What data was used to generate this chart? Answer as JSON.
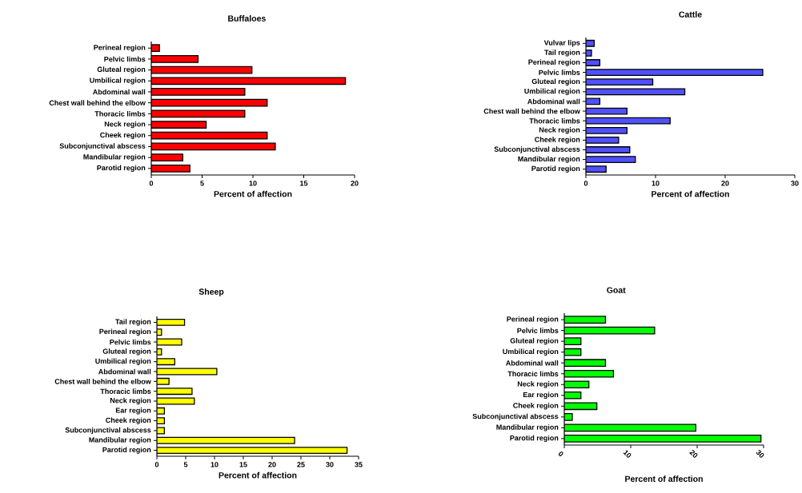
{
  "chart_data": [
    {
      "type": "bar",
      "orientation": "horizontal",
      "title": "Buffaloes",
      "xlabel": "Percent of affection",
      "color": "#ff0000",
      "xlim": [
        0,
        20
      ],
      "xticks": [
        0,
        5,
        10,
        15,
        20
      ],
      "categories": [
        "Perineal region",
        "Pelvic limbs",
        "Gluteal region",
        "Umbilical region",
        "Abdominal wall",
        "Chest wall behind the elbow",
        "Thoracic limbs",
        "Neck region",
        "Cheek region",
        "Subconjunctival abscess",
        "Mandibular region",
        "Parotid region"
      ],
      "values": [
        0.8,
        4.6,
        9.9,
        19.1,
        9.2,
        11.4,
        9.2,
        5.4,
        11.4,
        12.2,
        3.1,
        3.8
      ]
    },
    {
      "type": "bar",
      "orientation": "horizontal",
      "title": "Cattle",
      "xlabel": "Percent of affection",
      "color": "#5050ff",
      "xlim": [
        0,
        30
      ],
      "xticks": [
        0,
        10,
        20,
        30
      ],
      "categories": [
        "Vulvar lips",
        "Tail region",
        "Perineal region",
        "Pelvic limbs",
        "Gluteal region",
        "Umbilical region",
        "Abdominal wall",
        "Chest wall behind the elbow",
        "Thoracic limbs",
        "Neck region",
        "Cheek region",
        "Subconjunctival abscess",
        "Mandibular region",
        "Parotid region"
      ],
      "values": [
        1.2,
        0.8,
        2.0,
        25.4,
        9.6,
        14.2,
        2.0,
        5.9,
        12.1,
        5.9,
        4.7,
        6.3,
        7.1,
        2.9
      ]
    },
    {
      "type": "bar",
      "orientation": "horizontal",
      "title": "Sheep",
      "xlabel": "Percent of affection",
      "color": "#ffff00",
      "xlim": [
        0,
        35
      ],
      "xticks": [
        0,
        5,
        10,
        15,
        20,
        25,
        30,
        35
      ],
      "categories": [
        "Tail region",
        "Perineal region",
        "Pelvic limbs",
        "Gluteal region",
        "Umbilical region",
        "Abdominal wall",
        "Chest wall behind the elbow",
        "Thoracic limbs",
        "Neck region",
        "Ear region",
        "Cheek region",
        "Subconjunctival abscess",
        "Mandibular region",
        "Parotid region"
      ],
      "values": [
        4.8,
        0.8,
        4.3,
        0.8,
        3.1,
        10.4,
        2.1,
        6.1,
        6.5,
        1.3,
        1.3,
        1.3,
        23.9,
        33.0
      ]
    },
    {
      "type": "bar",
      "orientation": "horizontal",
      "title": "Goat",
      "xlabel": "Percent of affection",
      "color": "#00ff00",
      "xlim": [
        0,
        30
      ],
      "xticks": [
        0,
        10,
        20,
        30
      ],
      "categories": [
        "Perineal region",
        "Pelvic limbs",
        "Gluteal region",
        "Umbilical region",
        "Abdominal wall",
        "Thoracic limbs",
        "Neck region",
        "Ear region",
        "Cheek region",
        "Subconjunctival abscess",
        "Mandibular region",
        "Parotid region"
      ],
      "values": [
        6.2,
        13.6,
        2.5,
        2.5,
        6.2,
        7.4,
        3.7,
        2.5,
        4.9,
        1.2,
        19.8,
        29.6
      ]
    }
  ]
}
